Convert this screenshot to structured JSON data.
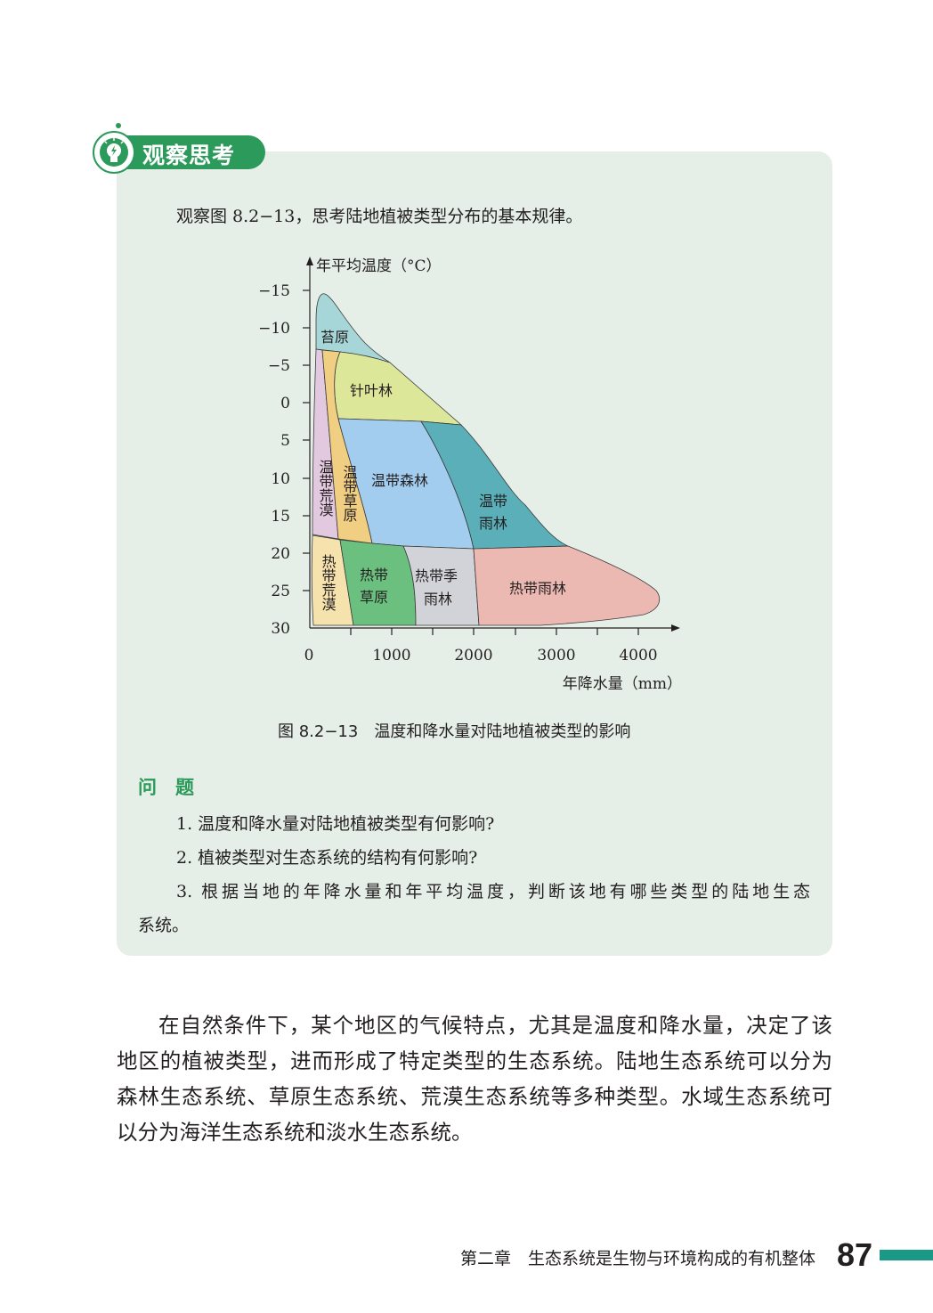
{
  "section_badge": {
    "label": "观察思考",
    "icon": "lightbulb-icon",
    "color": "#2b9a5a"
  },
  "prompt": "观察图 8.2−13，思考陆地植被类型分布的基本规律。",
  "figure": {
    "y_axis_label": "年平均温度（°C）",
    "x_axis_label": "年降水量（mm）",
    "y_ticks": [
      "−15",
      "−10",
      "−5",
      "0",
      "5",
      "10",
      "15",
      "20",
      "25",
      "30"
    ],
    "x_ticks": [
      "0",
      "1000",
      "2000",
      "3000",
      "4000"
    ],
    "regions": {
      "tundra": {
        "label": "苔原",
        "color": "#a6d6d8"
      },
      "conifer": {
        "label": "针叶林",
        "color": "#dde79a"
      },
      "temperate_desert": {
        "label": "温带荒漠",
        "color": "#e3c9e0"
      },
      "temperate_grassland": {
        "label": "温带草原",
        "color": "#f1cf82"
      },
      "temperate_forest": {
        "label": "温带森林",
        "color": "#a3cdee"
      },
      "temperate_rainforest": {
        "label1": "温带",
        "label2": "雨林",
        "color": "#5aafb8"
      },
      "tropical_desert": {
        "label": "热带荒漠",
        "color": "#f6e2ad"
      },
      "tropical_grassland": {
        "label1": "热带",
        "label2": "草原",
        "color": "#6cc07f"
      },
      "tropical_seasonal": {
        "label1": "热带季",
        "label2": "雨林",
        "color": "#d2d3d8"
      },
      "tropical_rainforest": {
        "label": "热带雨林",
        "color": "#ecb8b2"
      }
    },
    "caption": "图 8.2−13　温度和降水量对陆地植被类型的影响"
  },
  "questions": {
    "heading": "问　题",
    "q1": "1. 温度和降水量对陆地植被类型有何影响?",
    "q2": "2. 植被类型对生态系统的结构有何影响?",
    "q3_line1": "3. 根据当地的年降水量和年平均温度，判断该地有哪些类型的陆地生态",
    "q3_line2": "系统。"
  },
  "body": {
    "line1": "在自然条件下，某个地区的气候特点，尤其是温度和降水量，决定了该",
    "line2": "地区的植被类型，进而形成了特定类型的生态系统。陆地生态系统可以分为",
    "line3": "森林生态系统、草原生态系统、荒漠生态系统等多种类型。水域生态系统可",
    "line4": "以分为海洋生态系统和淡水生态系统。"
  },
  "footer": {
    "chapter": "第二章　生态系统是生物与环境构成的有机整体",
    "page_number": "87",
    "accent": "#1a9a86"
  }
}
